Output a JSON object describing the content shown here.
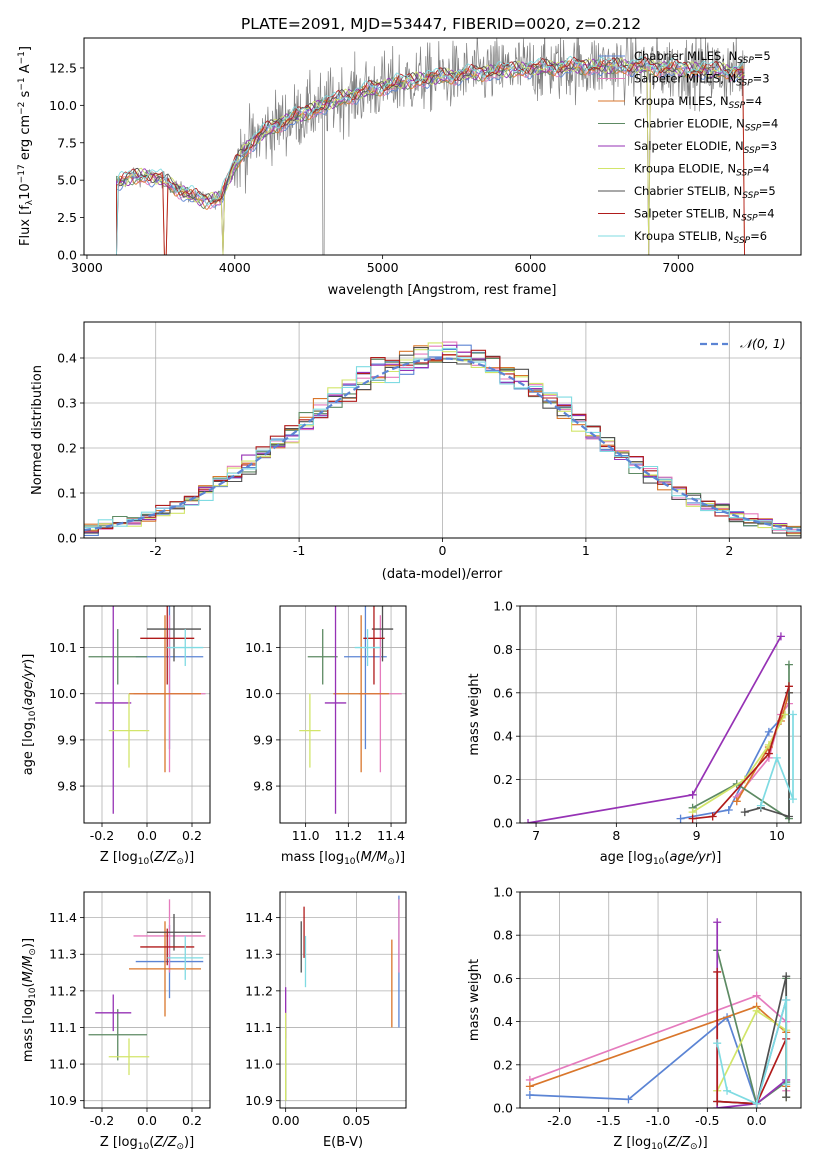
{
  "figure": {
    "title": "PLATE=2091, MJD=53447, FIBERID=0020, z=0.212"
  },
  "colors": {
    "Chabrier MILES": "#5b84d4",
    "Salpeter MILES": "#e57bbd",
    "Kroupa MILES": "#d9762b",
    "Chabrier ELODIE": "#5d8a63",
    "Salpeter ELODIE": "#9632b5",
    "Kroupa ELODIE": "#d2e56a",
    "Chabrier STELIB": "#505050",
    "Salpeter STELIB": "#b01b1b",
    "Kroupa STELIB": "#7fdbe2",
    "data": "#808080",
    "normal": "#5b84d4"
  },
  "chart_data": [
    {
      "id": "spectrum",
      "type": "line",
      "xlabel": "wavelength [Angstrom, rest frame]",
      "ylabel": "Flux [f_λ 10^-17 erg cm^-2 s^-1 A^-1]",
      "xlim": [
        2980,
        7830
      ],
      "ylim": [
        0,
        14.5
      ],
      "xticks": [
        3000,
        4000,
        5000,
        6000,
        7000
      ],
      "yticks": [
        0.0,
        2.5,
        5.0,
        7.5,
        10.0,
        12.5
      ],
      "legend_position": "upper-right",
      "legend": [
        {
          "model": "Chabrier MILES",
          "n": "5"
        },
        {
          "model": "Salpeter MILES",
          "n": "3"
        },
        {
          "model": "Kroupa MILES",
          "n": "4"
        },
        {
          "model": "Chabrier ELODIE",
          "n": "4"
        },
        {
          "model": "Salpeter ELODIE",
          "n": "3"
        },
        {
          "model": "Kroupa ELODIE",
          "n": "4"
        },
        {
          "model": "Chabrier STELIB",
          "n": "5"
        },
        {
          "model": "Salpeter STELIB",
          "n": "4"
        },
        {
          "model": "Kroupa STELIB",
          "n": "6"
        }
      ],
      "continuum": {
        "x": [
          3200,
          3300,
          3400,
          3500,
          3600,
          3700,
          3800,
          3900,
          4000,
          4100,
          4200,
          4300,
          4500,
          4700,
          4900,
          5100,
          5300,
          5500,
          5700,
          5900,
          6100,
          6300,
          6500,
          6700,
          6900,
          7100,
          7300,
          7450
        ],
        "y": [
          4.8,
          5.2,
          5.3,
          5.1,
          4.5,
          4.0,
          3.6,
          3.8,
          6.0,
          7.4,
          8.2,
          8.8,
          9.6,
          10.4,
          11.0,
          11.5,
          11.8,
          12.0,
          12.2,
          12.4,
          12.5,
          12.6,
          12.6,
          12.6,
          12.5,
          12.4,
          12.3,
          12.2
        ]
      }
    },
    {
      "id": "residuals",
      "type": "bar",
      "xlabel": "(data-model)/error",
      "ylabel": "Normed distribution",
      "xlim": [
        -2.5,
        2.5
      ],
      "ylim": [
        0,
        0.48
      ],
      "xticks": [
        -2,
        -1,
        0,
        1,
        2
      ],
      "yticks": [
        0.0,
        0.1,
        0.2,
        0.3,
        0.4
      ],
      "legend": "𝒩(0, 1)",
      "bin_width": 0.1
    },
    {
      "id": "age_vs_Z",
      "type": "scatter",
      "xlabel": "Z [log10(Z/Z⊙)]",
      "ylabel": "age  [log10(age/yr)]",
      "xlim": [
        -0.28,
        0.28
      ],
      "ylim": [
        9.72,
        10.19
      ],
      "xticks": [
        -0.2,
        0.0,
        0.2
      ],
      "yticks": [
        9.8,
        9.9,
        10.0,
        10.1
      ],
      "points": [
        {
          "model": "Chabrier MILES",
          "x": 0.1,
          "xerr": 0.15,
          "y": 10.08,
          "yerr": 0.2
        },
        {
          "model": "Salpeter MILES",
          "x": 0.1,
          "xerr": 0.16,
          "y": 10.0,
          "yerr": 0.17
        },
        {
          "model": "Kroupa MILES",
          "x": 0.08,
          "xerr": 0.16,
          "y": 10.0,
          "yerr": 0.17
        },
        {
          "model": "Chabrier ELODIE",
          "x": -0.13,
          "xerr": 0.13,
          "y": 10.08,
          "yerr": 0.06
        },
        {
          "model": "Salpeter ELODIE",
          "x": -0.15,
          "xerr": 0.08,
          "y": 9.98,
          "yerr": 0.24
        },
        {
          "model": "Kroupa ELODIE",
          "x": -0.08,
          "xerr": 0.09,
          "y": 9.92,
          "yerr": 0.08
        },
        {
          "model": "Chabrier STELIB",
          "x": 0.12,
          "xerr": 0.12,
          "y": 10.14,
          "yerr": 0.07
        },
        {
          "model": "Salpeter STELIB",
          "x": 0.09,
          "xerr": 0.12,
          "y": 10.12,
          "yerr": 0.1
        },
        {
          "model": "Kroupa STELIB",
          "x": 0.17,
          "xerr": 0.08,
          "y": 10.1,
          "yerr": 0.04
        }
      ]
    },
    {
      "id": "age_vs_mass",
      "type": "scatter",
      "xlabel": "mass [log10(M/M⊙)]",
      "ylabel": "",
      "xlim": [
        10.88,
        11.47
      ],
      "ylim": [
        9.72,
        10.19
      ],
      "xticks": [
        11.0,
        11.2,
        11.4
      ],
      "yticks": [
        9.8,
        9.9,
        10.0,
        10.1
      ],
      "points": [
        {
          "model": "Chabrier MILES",
          "x": 11.28,
          "xerr": 0.1,
          "y": 10.08,
          "yerr": 0.2
        },
        {
          "model": "Salpeter MILES",
          "x": 11.35,
          "xerr": 0.1,
          "y": 10.0,
          "yerr": 0.17
        },
        {
          "model": "Kroupa MILES",
          "x": 11.26,
          "xerr": 0.13,
          "y": 10.0,
          "yerr": 0.17
        },
        {
          "model": "Chabrier ELODIE",
          "x": 11.08,
          "xerr": 0.07,
          "y": 10.08,
          "yerr": 0.06
        },
        {
          "model": "Salpeter ELODIE",
          "x": 11.14,
          "xerr": 0.05,
          "y": 9.98,
          "yerr": 0.24
        },
        {
          "model": "Kroupa ELODIE",
          "x": 11.02,
          "xerr": 0.05,
          "y": 9.92,
          "yerr": 0.08
        },
        {
          "model": "Chabrier STELIB",
          "x": 11.36,
          "xerr": 0.05,
          "y": 10.14,
          "yerr": 0.07
        },
        {
          "model": "Salpeter STELIB",
          "x": 11.32,
          "xerr": 0.05,
          "y": 10.12,
          "yerr": 0.1
        },
        {
          "model": "Kroupa STELIB",
          "x": 11.29,
          "xerr": 0.06,
          "y": 10.1,
          "yerr": 0.04
        }
      ]
    },
    {
      "id": "massweight_vs_age",
      "type": "line",
      "xlabel": "age  [log10(age/yr)]",
      "ylabel": "mass weight",
      "xlim": [
        6.8,
        10.3
      ],
      "ylim": [
        0,
        1.0
      ],
      "xticks": [
        7,
        8,
        9,
        10
      ],
      "yticks": [
        0.0,
        0.2,
        0.4,
        0.6,
        0.8,
        1.0
      ],
      "series": [
        {
          "model": "Chabrier MILES",
          "x": [
            8.8,
            9.4,
            9.9,
            10.1
          ],
          "y": [
            0.02,
            0.06,
            0.42,
            0.5
          ]
        },
        {
          "model": "Salpeter MILES",
          "x": [
            9.5,
            9.9,
            10.05,
            10.15
          ],
          "y": [
            0.12,
            0.3,
            0.5,
            0.55
          ]
        },
        {
          "model": "Kroupa MILES",
          "x": [
            9.5,
            9.9,
            10.05,
            10.15
          ],
          "y": [
            0.1,
            0.35,
            0.47,
            0.6
          ]
        },
        {
          "model": "Chabrier ELODIE",
          "x": [
            8.95,
            9.5,
            10.15,
            10.15
          ],
          "y": [
            0.07,
            0.18,
            0.02,
            0.73
          ]
        },
        {
          "model": "Salpeter ELODIE",
          "x": [
            6.9,
            8.95,
            10.05
          ],
          "y": [
            0.0,
            0.13,
            0.86
          ]
        },
        {
          "model": "Kroupa ELODIE",
          "x": [
            8.95,
            9.6,
            9.9,
            10.1
          ],
          "y": [
            0.05,
            0.2,
            0.36,
            0.5
          ]
        },
        {
          "model": "Chabrier STELIB",
          "x": [
            9.6,
            9.8,
            10.15,
            10.15
          ],
          "y": [
            0.05,
            0.07,
            0.03,
            0.6
          ]
        },
        {
          "model": "Salpeter STELIB",
          "x": [
            8.95,
            9.2,
            9.9,
            10.15
          ],
          "y": [
            0.02,
            0.03,
            0.32,
            0.63
          ]
        },
        {
          "model": "Kroupa STELIB",
          "x": [
            9.8,
            10.0,
            10.2,
            10.2
          ],
          "y": [
            0.08,
            0.3,
            0.11,
            0.5
          ]
        }
      ]
    },
    {
      "id": "mass_vs_Z",
      "type": "scatter",
      "xlabel": "Z [log10(Z/Z⊙)]",
      "ylabel": "mass [log10(M/M⊙)]",
      "xlim": [
        -0.28,
        0.28
      ],
      "ylim": [
        10.88,
        11.47
      ],
      "xticks": [
        -0.2,
        0.0,
        0.2
      ],
      "yticks": [
        10.9,
        11.0,
        11.1,
        11.2,
        11.3,
        11.4
      ],
      "points": [
        {
          "model": "Chabrier MILES",
          "x": 0.1,
          "xerr": 0.15,
          "y": 11.28,
          "yerr": 0.1
        },
        {
          "model": "Salpeter MILES",
          "x": 0.1,
          "xerr": 0.16,
          "y": 11.35,
          "yerr": 0.1
        },
        {
          "model": "Kroupa MILES",
          "x": 0.08,
          "xerr": 0.16,
          "y": 11.26,
          "yerr": 0.13
        },
        {
          "model": "Chabrier ELODIE",
          "x": -0.13,
          "xerr": 0.13,
          "y": 11.08,
          "yerr": 0.07
        },
        {
          "model": "Salpeter ELODIE",
          "x": -0.15,
          "xerr": 0.08,
          "y": 11.14,
          "yerr": 0.05
        },
        {
          "model": "Kroupa ELODIE",
          "x": -0.08,
          "xerr": 0.09,
          "y": 11.02,
          "yerr": 0.05
        },
        {
          "model": "Chabrier STELIB",
          "x": 0.12,
          "xerr": 0.12,
          "y": 11.36,
          "yerr": 0.05
        },
        {
          "model": "Salpeter STELIB",
          "x": 0.09,
          "xerr": 0.12,
          "y": 11.32,
          "yerr": 0.05
        },
        {
          "model": "Kroupa STELIB",
          "x": 0.17,
          "xerr": 0.08,
          "y": 11.29,
          "yerr": 0.06
        }
      ]
    },
    {
      "id": "mass_vs_ebv",
      "type": "scatter",
      "xlabel": "E(B-V)",
      "ylabel": "",
      "xlim": [
        -0.004,
        0.085
      ],
      "ylim": [
        10.88,
        11.47
      ],
      "xticks": [
        0.0,
        0.05
      ],
      "yticks": [
        10.9,
        11.0,
        11.1,
        11.2,
        11.3,
        11.4
      ],
      "points": [
        {
          "model": "Chabrier MILES",
          "x": 0.08,
          "y": 11.28,
          "yerr": 0.18
        },
        {
          "model": "Salpeter MILES",
          "x": 0.08,
          "y": 11.35,
          "yerr": 0.1
        },
        {
          "model": "Kroupa MILES",
          "x": 0.075,
          "y": 11.22,
          "yerr": 0.12
        },
        {
          "model": "Chabrier ELODIE",
          "x": 0.0,
          "y": 11.0,
          "yerr": 0.1
        },
        {
          "model": "Salpeter ELODIE",
          "x": 0.0,
          "y": 11.14,
          "yerr": 0.07
        },
        {
          "model": "Kroupa ELODIE",
          "x": 0.0,
          "y": 11.02,
          "yerr": 0.12
        },
        {
          "model": "Chabrier STELIB",
          "x": 0.011,
          "y": 11.32,
          "yerr": 0.07
        },
        {
          "model": "Salpeter STELIB",
          "x": 0.013,
          "y": 11.36,
          "yerr": 0.07
        },
        {
          "model": "Kroupa STELIB",
          "x": 0.014,
          "y": 11.28,
          "yerr": 0.07
        }
      ]
    },
    {
      "id": "massweight_vs_Z",
      "type": "line",
      "xlabel": "Z [log10(Z/Z⊙)]",
      "ylabel": "mass weight",
      "xlim": [
        -2.4,
        0.45
      ],
      "ylim": [
        0,
        1.0
      ],
      "xticks": [
        -2.0,
        -1.5,
        -1.0,
        -0.5,
        0.0
      ],
      "yticks": [
        0.0,
        0.2,
        0.4,
        0.6,
        0.8,
        1.0
      ],
      "series": [
        {
          "model": "Chabrier MILES",
          "x": [
            -2.3,
            -1.3,
            -0.3,
            0.0,
            0.3
          ],
          "y": [
            0.06,
            0.04,
            0.42,
            0.02,
            0.5
          ]
        },
        {
          "model": "Salpeter MILES",
          "x": [
            -2.3,
            0.0,
            0.3,
            0.3
          ],
          "y": [
            0.13,
            0.52,
            0.4,
            0.08
          ]
        },
        {
          "model": "Kroupa MILES",
          "x": [
            -2.3,
            0.0,
            0.3,
            0.3
          ],
          "y": [
            0.1,
            0.47,
            0.35,
            0.1
          ]
        },
        {
          "model": "Chabrier ELODIE",
          "x": [
            -0.4,
            0.0,
            0.3,
            0.3
          ],
          "y": [
            0.73,
            0.02,
            0.12,
            0.6
          ]
        },
        {
          "model": "Salpeter ELODIE",
          "x": [
            -0.4,
            -0.4,
            0.0,
            0.3
          ],
          "y": [
            0.86,
            0.0,
            0.02,
            0.13
          ]
        },
        {
          "model": "Kroupa ELODIE",
          "x": [
            -0.4,
            0.0,
            0.3,
            0.3
          ],
          "y": [
            0.08,
            0.45,
            0.36,
            0.05
          ]
        },
        {
          "model": "Chabrier STELIB",
          "x": [
            -0.4,
            0.0,
            0.3,
            0.3
          ],
          "y": [
            0.03,
            0.02,
            0.61,
            0.05
          ]
        },
        {
          "model": "Salpeter STELIB",
          "x": [
            -0.4,
            -0.4,
            0.0,
            0.3
          ],
          "y": [
            0.63,
            0.03,
            0.02,
            0.32
          ]
        },
        {
          "model": "Kroupa STELIB",
          "x": [
            -0.4,
            -0.3,
            0.0,
            0.3,
            0.3
          ],
          "y": [
            0.3,
            0.08,
            0.02,
            0.5,
            0.11
          ]
        }
      ]
    }
  ]
}
